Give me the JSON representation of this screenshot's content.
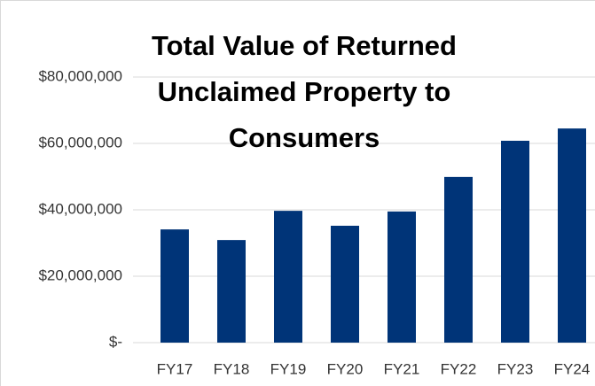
{
  "chart_data": {
    "type": "bar",
    "title": "Total Value of Returned Unclaimed Property to Consumers",
    "categories": [
      "FY17",
      "FY18",
      "FY19",
      "FY20",
      "FY21",
      "FY22",
      "FY23",
      "FY24"
    ],
    "values": [
      34100000,
      30900000,
      39700000,
      35200000,
      39500000,
      49900000,
      60800000,
      64500000
    ],
    "color": "#003478",
    "ylim": [
      0,
      80000000
    ],
    "yticks": [
      {
        "value": 0,
        "label": "$-"
      },
      {
        "value": 20000000,
        "label": "$20,000,000"
      },
      {
        "value": 40000000,
        "label": "$40,000,000"
      },
      {
        "value": 60000000,
        "label": "$60,000,000"
      },
      {
        "value": 80000000,
        "label": "$80,000,000"
      }
    ],
    "grid": true
  }
}
